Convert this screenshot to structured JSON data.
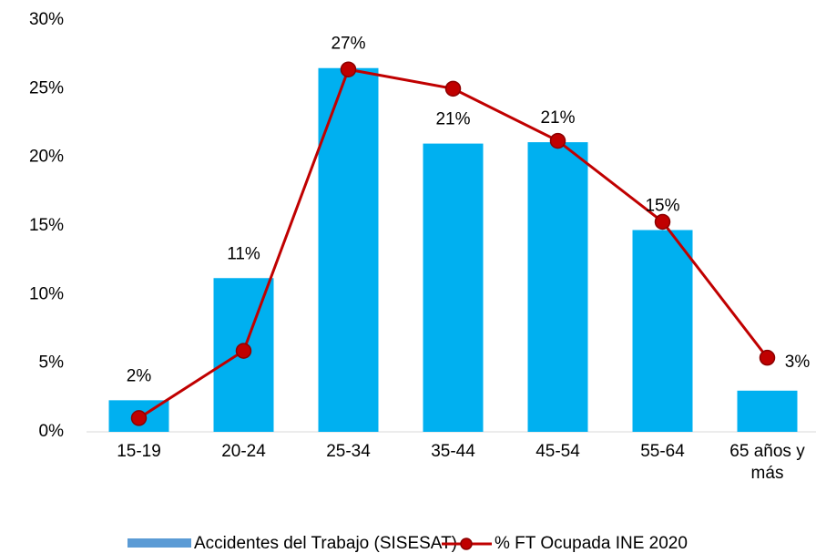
{
  "chart_data": {
    "type": "bar_line",
    "categories": [
      "15-19",
      "20-24",
      "25-34",
      "35-44",
      "45-54",
      "55-64",
      "65 años y más"
    ],
    "series": [
      {
        "name": "Accidentes del Trabajo (SISESAT)",
        "type": "bar",
        "color": "#00b0f0",
        "legend_color": "#5b9bd5",
        "values": [
          2.3,
          11.2,
          26.5,
          21.0,
          21.1,
          14.7,
          3.0
        ],
        "value_labels": [
          "2%",
          "11%",
          "27%",
          "21%",
          "21%",
          "15%",
          "3%"
        ]
      },
      {
        "name": "% FT Ocupada INE 2020",
        "type": "line",
        "color": "#c00000",
        "values": [
          1.0,
          5.9,
          26.4,
          25.0,
          21.2,
          15.3,
          5.4
        ]
      }
    ],
    "ylim": [
      0,
      30
    ],
    "yticks": [
      {
        "value": 0,
        "label": "0%"
      },
      {
        "value": 5,
        "label": "5%"
      },
      {
        "value": 10,
        "label": "10%"
      },
      {
        "value": 15,
        "label": "15%"
      },
      {
        "value": 20,
        "label": "20%"
      },
      {
        "value": 25,
        "label": "25%"
      },
      {
        "value": 30,
        "label": "30%"
      }
    ],
    "grid": false,
    "legend": "bottom"
  }
}
